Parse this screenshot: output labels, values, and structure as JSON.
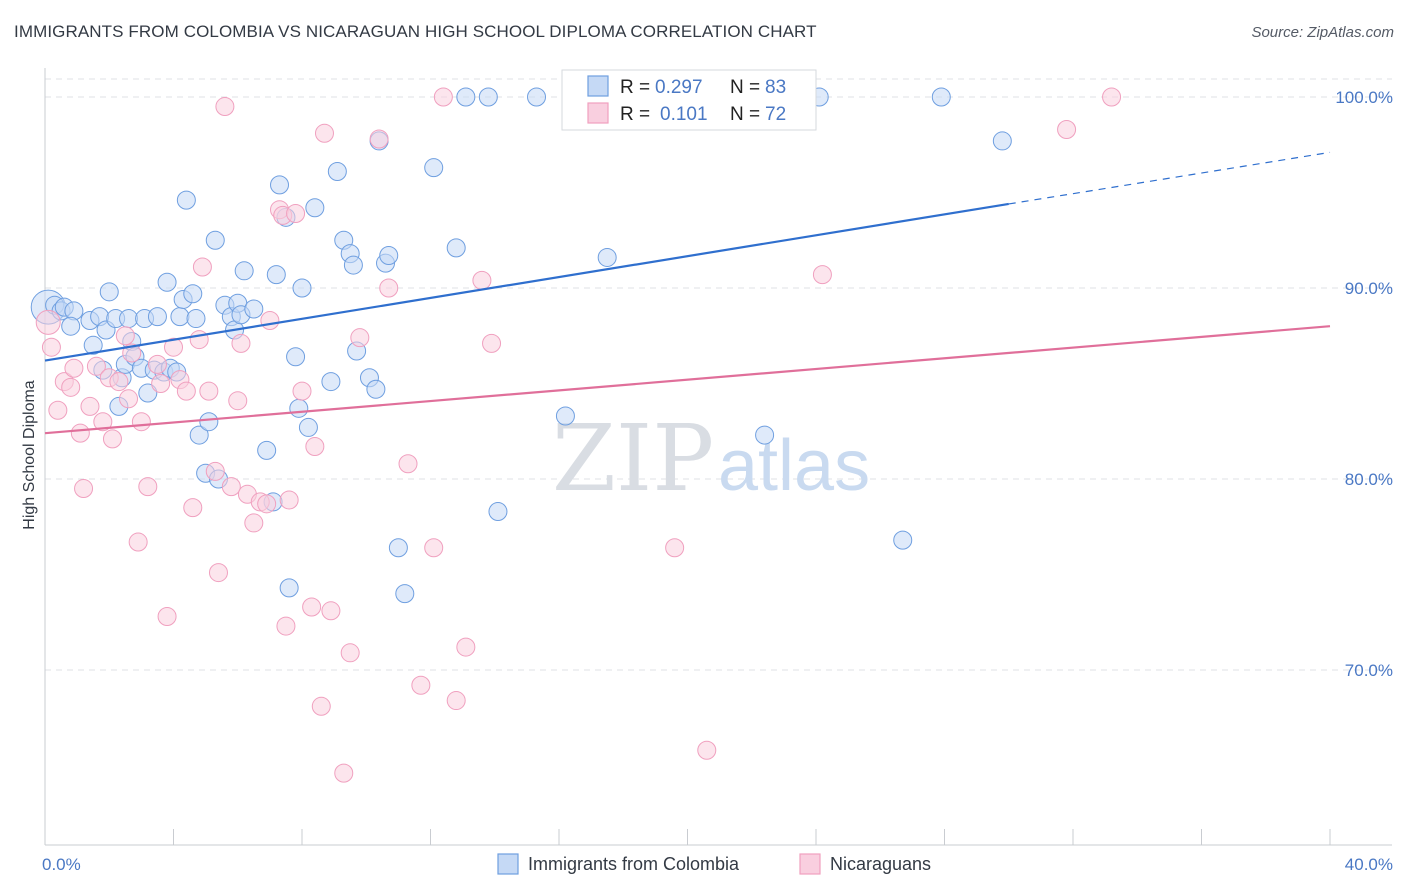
{
  "title": "IMMIGRANTS FROM COLOMBIA VS NICARAGUAN HIGH SCHOOL DIPLOMA CORRELATION CHART",
  "source": "Source: ZipAtlas.com",
  "watermark": {
    "zip": "ZIP",
    "atlas": "atlas"
  },
  "colors": {
    "blue": "#6f9fe0",
    "blue_line": "#2f6fce",
    "pink": "#f0a0bf",
    "pink_line": "#e06f9a",
    "text_blue": "#4a78c4"
  },
  "legend": {
    "r_label": "R =",
    "n_label": "N =",
    "rows": [
      {
        "r": "0.297",
        "n": "83"
      },
      {
        "r": "0.101",
        "n": "72"
      }
    ]
  },
  "chart_data": {
    "type": "scatter",
    "title": "IMMIGRANTS FROM COLOMBIA VS NICARAGUAN HIGH SCHOOL DIPLOMA CORRELATION CHART",
    "xlabel": "",
    "ylabel": "High School Diploma",
    "xlim": [
      0,
      40
    ],
    "ylim": [
      60,
      101
    ],
    "x_tick_labels": [
      "0.0%",
      "40.0%"
    ],
    "y_ticks": [
      70,
      80,
      90,
      100
    ],
    "y_tick_labels": [
      "70.0%",
      "80.0%",
      "90.0%",
      "100.0%"
    ],
    "grid": true,
    "legend_placement": "top-center",
    "series": [
      {
        "name": "Immigrants from Colombia",
        "color": "#6f9fe0",
        "trend": {
          "x": [
            0,
            30
          ],
          "y": [
            86.2,
            94.4
          ],
          "dash_to": [
            40,
            97.1
          ]
        },
        "points": [
          [
            0.1,
            89
          ],
          [
            0.3,
            89.1
          ],
          [
            0.5,
            88.8
          ],
          [
            0.6,
            89
          ],
          [
            0.9,
            88.8
          ],
          [
            0.8,
            88
          ],
          [
            1.4,
            88.3
          ],
          [
            1.7,
            88.5
          ],
          [
            1.9,
            87.8
          ],
          [
            1.5,
            87
          ],
          [
            1.8,
            85.7
          ],
          [
            2.0,
            89.8
          ],
          [
            2.2,
            88.4
          ],
          [
            2.3,
            83.8
          ],
          [
            2.4,
            85.3
          ],
          [
            2.5,
            86
          ],
          [
            2.6,
            88.4
          ],
          [
            2.7,
            87.2
          ],
          [
            2.8,
            86.4
          ],
          [
            3.0,
            85.8
          ],
          [
            3.1,
            88.4
          ],
          [
            3.2,
            84.5
          ],
          [
            3.4,
            85.7
          ],
          [
            3.5,
            88.5
          ],
          [
            3.7,
            85.6
          ],
          [
            3.8,
            90.3
          ],
          [
            3.9,
            85.8
          ],
          [
            4.1,
            85.6
          ],
          [
            4.2,
            88.5
          ],
          [
            4.3,
            89.4
          ],
          [
            4.4,
            94.6
          ],
          [
            4.6,
            89.7
          ],
          [
            4.7,
            88.4
          ],
          [
            4.8,
            82.3
          ],
          [
            5.0,
            80.3
          ],
          [
            5.1,
            83
          ],
          [
            5.3,
            92.5
          ],
          [
            5.4,
            80
          ],
          [
            5.6,
            89.1
          ],
          [
            5.8,
            88.5
          ],
          [
            6.0,
            89.2
          ],
          [
            5.9,
            87.8
          ],
          [
            6.1,
            88.6
          ],
          [
            6.2,
            90.9
          ],
          [
            6.5,
            88.9
          ],
          [
            6.9,
            81.5
          ],
          [
            7.1,
            78.8
          ],
          [
            7.2,
            90.7
          ],
          [
            7.3,
            95.4
          ],
          [
            7.5,
            93.7
          ],
          [
            7.6,
            74.3
          ],
          [
            7.8,
            86.4
          ],
          [
            7.9,
            83.7
          ],
          [
            8.0,
            90
          ],
          [
            8.2,
            82.7
          ],
          [
            8.4,
            94.2
          ],
          [
            8.9,
            85.1
          ],
          [
            9.1,
            96.1
          ],
          [
            9.3,
            92.5
          ],
          [
            9.5,
            91.8
          ],
          [
            9.6,
            91.2
          ],
          [
            9.7,
            86.7
          ],
          [
            10.1,
            85.3
          ],
          [
            10.3,
            84.7
          ],
          [
            10.4,
            97.7
          ],
          [
            10.6,
            91.3
          ],
          [
            10.7,
            91.7
          ],
          [
            11.0,
            76.4
          ],
          [
            11.2,
            74
          ],
          [
            12.1,
            96.3
          ],
          [
            12.8,
            92.1
          ],
          [
            13.1,
            100
          ],
          [
            13.8,
            100
          ],
          [
            14.1,
            78.3
          ],
          [
            15.3,
            100
          ],
          [
            16.2,
            83.3
          ],
          [
            17.5,
            91.6
          ],
          [
            21.0,
            100
          ],
          [
            22.4,
            82.3
          ],
          [
            24.1,
            100
          ],
          [
            26.7,
            76.8
          ],
          [
            27.9,
            100
          ],
          [
            29.8,
            97.7
          ]
        ]
      },
      {
        "name": "Nicaraguans",
        "color": "#f0a0bf",
        "trend": {
          "x": [
            0,
            40
          ],
          "y": [
            82.4,
            88
          ]
        },
        "points": [
          [
            0.1,
            88.2
          ],
          [
            0.2,
            86.9
          ],
          [
            0.4,
            83.6
          ],
          [
            0.6,
            85.1
          ],
          [
            0.8,
            84.8
          ],
          [
            0.9,
            85.8
          ],
          [
            1.1,
            82.4
          ],
          [
            1.2,
            79.5
          ],
          [
            1.4,
            83.8
          ],
          [
            1.6,
            85.9
          ],
          [
            1.8,
            83
          ],
          [
            2.0,
            85.3
          ],
          [
            2.1,
            82.1
          ],
          [
            2.3,
            85.1
          ],
          [
            2.5,
            87.5
          ],
          [
            2.6,
            84.2
          ],
          [
            2.7,
            86.6
          ],
          [
            2.9,
            76.7
          ],
          [
            3.0,
            83
          ],
          [
            3.2,
            79.6
          ],
          [
            3.5,
            86
          ],
          [
            3.6,
            85
          ],
          [
            3.8,
            72.8
          ],
          [
            4.0,
            86.9
          ],
          [
            4.2,
            85.2
          ],
          [
            4.4,
            84.6
          ],
          [
            4.6,
            78.5
          ],
          [
            4.8,
            87.3
          ],
          [
            4.9,
            91.1
          ],
          [
            5.1,
            84.6
          ],
          [
            5.3,
            80.4
          ],
          [
            5.4,
            75.1
          ],
          [
            5.6,
            99.5
          ],
          [
            5.8,
            79.6
          ],
          [
            6.0,
            84.1
          ],
          [
            6.1,
            87.1
          ],
          [
            6.3,
            79.2
          ],
          [
            6.5,
            77.7
          ],
          [
            6.7,
            78.8
          ],
          [
            6.9,
            78.7
          ],
          [
            7.0,
            88.3
          ],
          [
            7.3,
            94.1
          ],
          [
            7.4,
            93.8
          ],
          [
            7.6,
            78.9
          ],
          [
            7.8,
            93.9
          ],
          [
            7.5,
            72.3
          ],
          [
            8.0,
            84.6
          ],
          [
            8.3,
            73.3
          ],
          [
            8.4,
            81.7
          ],
          [
            8.6,
            68.1
          ],
          [
            8.7,
            98.1
          ],
          [
            8.9,
            73.1
          ],
          [
            9.3,
            64.6
          ],
          [
            9.5,
            70.9
          ],
          [
            9.8,
            87.4
          ],
          [
            10.4,
            97.8
          ],
          [
            10.7,
            90
          ],
          [
            11.3,
            80.8
          ],
          [
            11.7,
            69.2
          ],
          [
            12.1,
            76.4
          ],
          [
            12.4,
            100
          ],
          [
            12.8,
            68.4
          ],
          [
            13.1,
            71.2
          ],
          [
            13.6,
            90.4
          ],
          [
            13.9,
            87.1
          ],
          [
            17.6,
            100
          ],
          [
            19.6,
            76.4
          ],
          [
            20.6,
            65.8
          ],
          [
            22.6,
            100
          ],
          [
            24.2,
            90.7
          ],
          [
            31.8,
            98.3
          ],
          [
            33.2,
            100
          ]
        ]
      }
    ]
  },
  "bottom_legend": [
    {
      "label": "Immigrants from Colombia"
    },
    {
      "label": "Nicaraguans"
    }
  ]
}
